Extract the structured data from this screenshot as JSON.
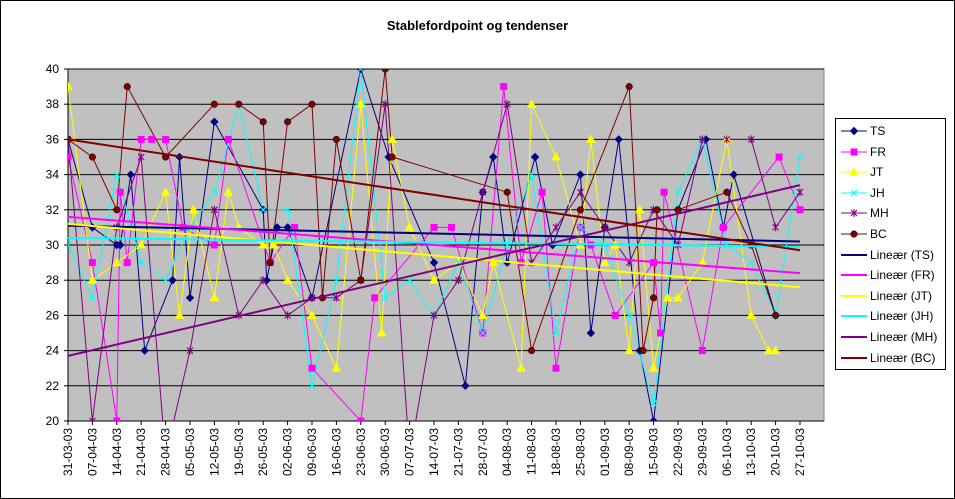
{
  "chart_data": {
    "type": "line",
    "title": "Stablefordpoint og tendenser",
    "xlabel": "",
    "ylabel": "",
    "ylim": [
      20,
      40
    ],
    "yticks": [
      20,
      22,
      24,
      26,
      28,
      30,
      32,
      34,
      36,
      38,
      40
    ],
    "grid": true,
    "legend_position": "right",
    "background": "#c0c0c0",
    "x_tick_labels": [
      "31-03-03",
      "07-04-03",
      "14-04-03",
      "21-04-03",
      "28-04-03",
      "05-05-03",
      "12-05-03",
      "19-05-03",
      "26-05-03",
      "02-06-03",
      "09-06-03",
      "16-06-03",
      "23-06-03",
      "30-06-03",
      "07-07-03",
      "14-07-03",
      "21-07-03",
      "28-07-03",
      "04-08-03",
      "11-08-03",
      "18-08-03",
      "25-08-03",
      "01-09-03",
      "08-09-03",
      "15-09-03",
      "22-09-03",
      "29-09-03",
      "06-10-03",
      "13-10-03",
      "20-10-03",
      "27-10-03"
    ],
    "x_day_range": [
      0,
      210
    ],
    "series": [
      {
        "name": "TS",
        "color": "#000080",
        "marker": "diamond",
        "x": [
          0,
          7,
          14,
          15,
          18,
          22,
          30,
          32,
          35,
          42,
          56,
          57,
          60,
          63,
          70,
          84,
          92,
          105,
          114,
          119,
          122,
          126,
          134,
          139,
          147,
          150,
          154,
          158,
          164,
          168,
          175,
          183,
          188,
          191,
          203
        ],
        "y": [
          36,
          31,
          30,
          30,
          34,
          24,
          28,
          35,
          27,
          37,
          32,
          28,
          31,
          31,
          27,
          40,
          35,
          29,
          22,
          33,
          35,
          29,
          35,
          30,
          34,
          25,
          31,
          36,
          24,
          20,
          32,
          36,
          31,
          34,
          26
        ]
      },
      {
        "name": "FR",
        "color": "#ff00ff",
        "marker": "square",
        "x": [
          0,
          7,
          14,
          15,
          17,
          21,
          24,
          28,
          33,
          42,
          46,
          58,
          65,
          70,
          84,
          88,
          105,
          110,
          119,
          125,
          130,
          136,
          140,
          147,
          150,
          157,
          168,
          170,
          171,
          182,
          188,
          204,
          210
        ],
        "y": [
          35,
          29,
          20,
          33,
          29,
          36,
          36,
          36,
          31,
          30,
          36,
          29,
          31,
          23,
          20,
          27,
          31,
          31,
          25,
          39,
          29,
          33,
          23,
          31,
          30,
          26,
          29,
          25,
          33,
          24,
          31,
          35,
          32
        ]
      },
      {
        "name": "JT",
        "color": "#ffff00",
        "marker": "triangle",
        "x": [
          0,
          7,
          14,
          21,
          28,
          32,
          36,
          42,
          46,
          49,
          56,
          59,
          63,
          70,
          77,
          84,
          90,
          93,
          98,
          105,
          112,
          119,
          122,
          130,
          133,
          140,
          147,
          150,
          154,
          157,
          161,
          164,
          168,
          172,
          175,
          182,
          189,
          196,
          201,
          203
        ],
        "y": [
          39,
          28,
          29,
          30,
          33,
          26,
          32,
          27,
          33,
          31,
          30,
          30,
          28,
          26,
          23,
          38,
          25,
          36,
          31,
          28,
          29,
          26,
          29,
          23,
          38,
          35,
          30,
          36,
          29,
          30,
          24,
          32,
          23,
          27,
          27,
          29,
          36,
          26,
          24,
          24
        ]
      },
      {
        "name": "JH",
        "color": "#00ffff",
        "marker": "x",
        "x": [
          0,
          7,
          14,
          21,
          28,
          35,
          42,
          49,
          56,
          63,
          70,
          77,
          84,
          91,
          98,
          105,
          112,
          119,
          126,
          133,
          140,
          147,
          154,
          161,
          168,
          175,
          182,
          189,
          196,
          203,
          210
        ],
        "y": [
          30,
          27,
          34,
          29,
          28,
          31,
          33,
          38,
          32,
          32,
          22,
          28,
          40,
          27,
          28,
          26,
          29,
          25,
          30,
          34,
          25,
          31,
          30,
          26,
          21,
          33,
          36,
          30,
          29,
          26,
          35
        ]
      },
      {
        "name": "MH",
        "color": "#800080",
        "marker": "star",
        "x": [
          0,
          7,
          14,
          21,
          28,
          35,
          42,
          49,
          56,
          63,
          70,
          77,
          84,
          91,
          98,
          105,
          112,
          119,
          126,
          133,
          140,
          147,
          154,
          161,
          168,
          175,
          182,
          189,
          196,
          203,
          210
        ],
        "y": [
          36,
          20,
          31,
          35,
          18,
          24,
          32,
          26,
          28,
          26,
          27,
          27,
          28,
          38,
          18,
          26,
          28,
          33,
          38,
          29,
          31,
          33,
          31,
          29,
          32,
          30,
          36,
          36,
          36,
          31,
          33
        ]
      },
      {
        "name": "BC",
        "color": "#800000",
        "marker": "circle",
        "x": [
          0,
          7,
          14,
          17,
          28,
          42,
          49,
          56,
          58,
          63,
          70,
          73,
          77,
          84,
          91,
          93,
          126,
          133,
          147,
          161,
          165,
          168,
          169,
          175,
          189,
          196,
          203
        ],
        "y": [
          36,
          35,
          32,
          39,
          35,
          38,
          38,
          37,
          29,
          37,
          38,
          27,
          36,
          28,
          40,
          35,
          33,
          24,
          32,
          39,
          24,
          27,
          32,
          32,
          33,
          30,
          26
        ]
      }
    ],
    "trendlines": [
      {
        "name": "Lineær (TS)",
        "color": "#000080",
        "y_start": 31.1,
        "y_end": 30.2
      },
      {
        "name": "Lineær (FR)",
        "color": "#ff00ff",
        "y_start": 31.6,
        "y_end": 28.4
      },
      {
        "name": "Lineær (JT)",
        "color": "#ffff00",
        "y_start": 31.2,
        "y_end": 27.6
      },
      {
        "name": "Lineær (JH)",
        "color": "#00ffff",
        "y_start": 30.4,
        "y_end": 29.9
      },
      {
        "name": "Lineær (MH)",
        "color": "#800080",
        "y_start": 23.7,
        "y_end": 33.4
      },
      {
        "name": "Lineær (BC)",
        "color": "#800000",
        "y_start": 36.0,
        "y_end": 29.7
      }
    ]
  }
}
